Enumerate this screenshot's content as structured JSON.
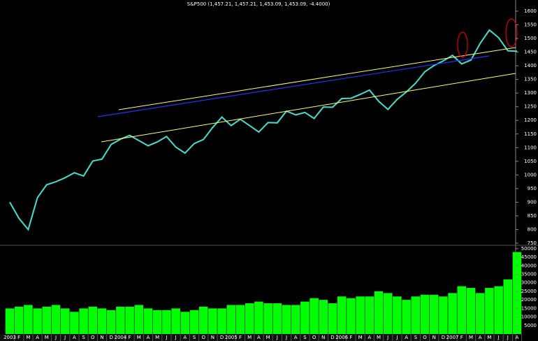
{
  "chart_data": {
    "type": "line",
    "title": "S&P500 (1,457.21, 1,457.21, 1,453.09, 1,453.09, -4.4000)",
    "categories": [
      "2003",
      "F",
      "M",
      "A",
      "M",
      "J",
      "J",
      "A",
      "S",
      "O",
      "N",
      "D",
      "2004",
      "F",
      "M",
      "A",
      "M",
      "J",
      "J",
      "A",
      "S",
      "O",
      "N",
      "D",
      "2005",
      "F",
      "M",
      "A",
      "M",
      "J",
      "J",
      "A",
      "S",
      "O",
      "N",
      "D",
      "2006",
      "F",
      "M",
      "A",
      "M",
      "J",
      "J",
      "A",
      "S",
      "O",
      "N",
      "D",
      "2007",
      "F",
      "M",
      "A",
      "M",
      "J",
      "J",
      "A"
    ],
    "series": [
      {
        "type": "line",
        "color": "#40e0d0",
        "values": [
          900,
          841,
          800,
          917,
          964,
          975,
          990,
          1008,
          996,
          1051,
          1058,
          1112,
          1131,
          1145,
          1126,
          1107,
          1121,
          1141,
          1102,
          1080,
          1115,
          1130,
          1174,
          1212,
          1181,
          1204,
          1181,
          1157,
          1192,
          1191,
          1234,
          1220,
          1229,
          1207,
          1249,
          1248,
          1280,
          1281,
          1295,
          1311,
          1270,
          1240,
          1277,
          1304,
          1336,
          1378,
          1401,
          1418,
          1438,
          1407,
          1421,
          1482,
          1531,
          1503,
          1455,
          1453
        ]
      },
      {
        "type": "bar",
        "axis": "y2",
        "color": "#00ff00",
        "values": [
          15000,
          16000,
          17000,
          15000,
          16000,
          17000,
          15000,
          13000,
          15000,
          16000,
          15000,
          14000,
          16000,
          16000,
          17000,
          15000,
          14000,
          14000,
          15000,
          13000,
          14000,
          16000,
          15000,
          15000,
          17000,
          17000,
          18000,
          19000,
          18000,
          18000,
          17000,
          17000,
          19000,
          21000,
          20000,
          18000,
          22000,
          21000,
          22000,
          22000,
          25000,
          24000,
          22000,
          20000,
          22000,
          23000,
          23000,
          22000,
          24000,
          28000,
          27000,
          24000,
          27000,
          28000,
          32000,
          48000
        ]
      }
    ],
    "ylim": [
      750,
      1600
    ],
    "yticks": [
      750,
      800,
      850,
      900,
      950,
      1000,
      1050,
      1100,
      1150,
      1200,
      1250,
      1300,
      1350,
      1400,
      1450,
      1500,
      1550,
      1600
    ],
    "y2lim": [
      0,
      52000
    ],
    "y2ticks": [
      5000,
      10000,
      15000,
      20000,
      25000,
      30000,
      35000,
      40000,
      45000,
      50000
    ]
  }
}
